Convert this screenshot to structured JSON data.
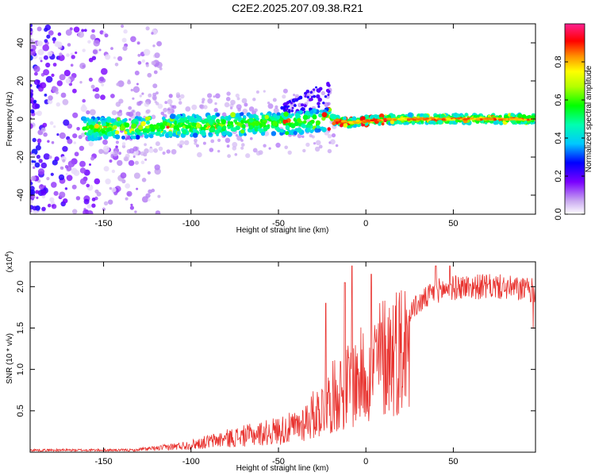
{
  "title": "C2E2.2025.207.09.38.R21",
  "chart_data": [
    {
      "type": "heatmap",
      "xlabel": "Height of straight line (km)",
      "ylabel": "Frequency (Hz)",
      "xlim": [
        -192,
        97
      ],
      "ylim": [
        -50,
        50
      ],
      "x_ticks": [
        -150,
        -100,
        -50,
        0,
        50
      ],
      "x_tick_labels": [
        "-150",
        "-100",
        "-50",
        "0",
        "50"
      ],
      "y_ticks": [
        -40,
        -20,
        0,
        20,
        40
      ],
      "y_tick_labels": [
        "-40",
        "-20",
        "0",
        "20",
        "40"
      ],
      "colorbar": {
        "label": "Normalized spectral amplitude",
        "range": [
          0,
          1
        ],
        "ticks": [
          0.0,
          0.2,
          0.4,
          0.6,
          0.8
        ],
        "tick_labels": [
          "0.0",
          "0.2",
          "0.4",
          "0.6",
          "0.8"
        ],
        "colormap": "rainbow (white-violet-blue-cyan-green-yellow-orange-red-pink)"
      },
      "ridge": [
        {
          "x": -160,
          "y": -5
        },
        {
          "x": -120,
          "y": -4
        },
        {
          "x": -80,
          "y": -3
        },
        {
          "x": -40,
          "y": -2
        },
        {
          "x": -20,
          "y": 0
        },
        {
          "x": -10,
          "y": -2
        },
        {
          "x": 0,
          "y": -1
        },
        {
          "x": 20,
          "y": 0
        },
        {
          "x": 60,
          "y": 0
        },
        {
          "x": 95,
          "y": 0
        }
      ],
      "grid": false,
      "legend": "none"
    },
    {
      "type": "line",
      "xlabel": "Height of straight line (km)",
      "ylabel": "SNR (10 * v/v)",
      "scale_label": "(x10",
      "scale_exp": "4",
      "xlim": [
        -192,
        97
      ],
      "ylim": [
        0,
        2.3
      ],
      "x_ticks": [
        -150,
        -100,
        -50,
        0,
        50
      ],
      "x_tick_labels": [
        "-150",
        "-100",
        "-50",
        "0",
        "50"
      ],
      "y_ticks": [
        0.5,
        1.0,
        1.5,
        2.0
      ],
      "y_tick_labels": [
        "0.5",
        "1.0",
        "1.5",
        "2.0"
      ],
      "series_color": "#e8302c",
      "envelope": [
        {
          "x": -192,
          "y": 0.02
        },
        {
          "x": -140,
          "y": 0.03
        },
        {
          "x": -120,
          "y": 0.06
        },
        {
          "x": -100,
          "y": 0.12
        },
        {
          "x": -80,
          "y": 0.22
        },
        {
          "x": -60,
          "y": 0.3
        },
        {
          "x": -40,
          "y": 0.4
        },
        {
          "x": -25,
          "y": 0.7
        },
        {
          "x": -15,
          "y": 1.0
        },
        {
          "x": -5,
          "y": 1.15
        },
        {
          "x": 10,
          "y": 1.55
        },
        {
          "x": 25,
          "y": 1.75
        },
        {
          "x": 40,
          "y": 2.0
        },
        {
          "x": 55,
          "y": 2.05
        },
        {
          "x": 75,
          "y": 2.05
        },
        {
          "x": 97,
          "y": 2.0
        }
      ],
      "peaks": [
        {
          "x": -23,
          "y": 1.8
        },
        {
          "x": -12,
          "y": 2.05
        },
        {
          "x": -8,
          "y": 2.25
        },
        {
          "x": 3,
          "y": 2.15
        },
        {
          "x": 40,
          "y": 2.25
        },
        {
          "x": 48,
          "y": 2.25
        }
      ],
      "grid": false,
      "legend": "none"
    }
  ]
}
